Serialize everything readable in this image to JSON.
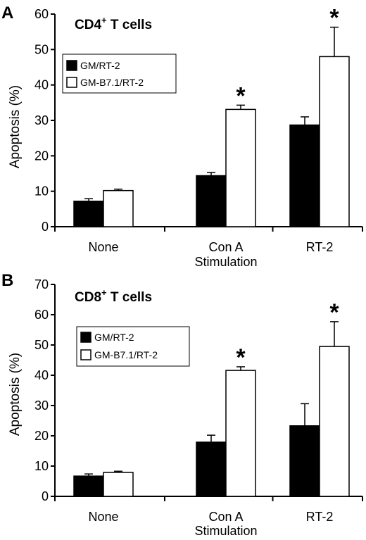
{
  "chart_data": [
    {
      "type": "bar",
      "panel_label": "A",
      "title": "CD4",
      "title_superscript": "+",
      "title_suffix": " T cells",
      "ylabel": "Apoptosis (%)",
      "xlabel": "Stimulation",
      "ylim": [
        0,
        60
      ],
      "yticks": [
        "0",
        "10",
        "20",
        "30",
        "40",
        "50",
        "60"
      ],
      "categories": [
        "None",
        "Con A",
        "RT-2"
      ],
      "series": [
        {
          "name": "GM/RT-2",
          "color": "#000000",
          "values": [
            7.2,
            14.4,
            28.7
          ],
          "errors": [
            0.7,
            0.9,
            2.3
          ]
        },
        {
          "name": "GM-B7.1/RT-2",
          "color": "#ffffff",
          "values": [
            10.2,
            33.1,
            48.0
          ],
          "errors": [
            0.4,
            1.2,
            8.3
          ]
        }
      ],
      "significance": [
        {
          "category": "Con A",
          "series": "GM-B7.1/RT-2",
          "marker": "*"
        },
        {
          "category": "RT-2",
          "series": "GM-B7.1/RT-2",
          "marker": "*"
        }
      ],
      "legend_position": "upper-left"
    },
    {
      "type": "bar",
      "panel_label": "B",
      "title": "CD8",
      "title_superscript": "+",
      "title_suffix": " T cells",
      "ylabel": "Apoptosis (%)",
      "xlabel": "Stimulation",
      "ylim": [
        0,
        70
      ],
      "yticks": [
        "0",
        "10",
        "20",
        "30",
        "40",
        "50",
        "60",
        "70"
      ],
      "categories": [
        "None",
        "Con A",
        "RT-2"
      ],
      "series": [
        {
          "name": "GM/RT-2",
          "color": "#000000",
          "values": [
            6.7,
            17.9,
            23.3
          ],
          "errors": [
            0.7,
            2.3,
            7.3
          ]
        },
        {
          "name": "GM-B7.1/RT-2",
          "color": "#ffffff",
          "values": [
            7.9,
            41.6,
            49.5
          ],
          "errors": [
            0.4,
            1.2,
            8.2
          ]
        }
      ],
      "significance": [
        {
          "category": "Con A",
          "series": "GM-B7.1/RT-2",
          "marker": "*"
        },
        {
          "category": "RT-2",
          "series": "GM-B7.1/RT-2",
          "marker": "*"
        }
      ],
      "legend_position": "upper-left"
    }
  ]
}
